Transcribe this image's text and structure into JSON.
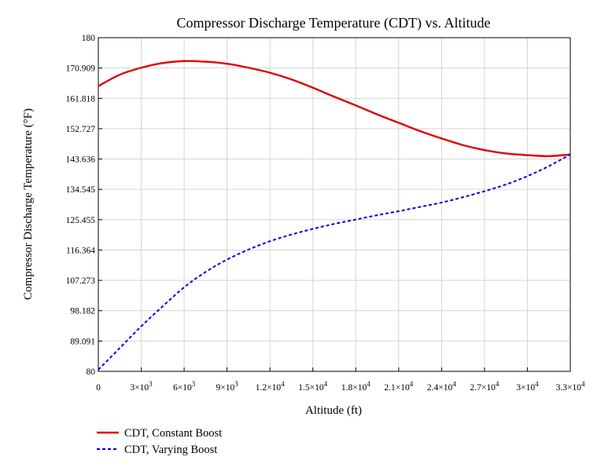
{
  "chart_data": {
    "type": "line",
    "title": "Compressor Discharge Temperature (CDT) vs. Altitude",
    "xlabel": "Altitude (ft)",
    "ylabel": "Compressor Discharge Temperature (°F)",
    "xlim": [
      0,
      33000
    ],
    "ylim": [
      80,
      180
    ],
    "grid": true,
    "legend_position": "bottom-left",
    "x_ticks": [
      {
        "value": 0,
        "mant": "0",
        "exp": ""
      },
      {
        "value": 3000,
        "mant": "3×10",
        "exp": "3"
      },
      {
        "value": 6000,
        "mant": "6×10",
        "exp": "3"
      },
      {
        "value": 9000,
        "mant": "9×10",
        "exp": "3"
      },
      {
        "value": 12000,
        "mant": "1.2×10",
        "exp": "4"
      },
      {
        "value": 15000,
        "mant": "1.5×10",
        "exp": "4"
      },
      {
        "value": 18000,
        "mant": "1.8×10",
        "exp": "4"
      },
      {
        "value": 21000,
        "mant": "2.1×10",
        "exp": "4"
      },
      {
        "value": 24000,
        "mant": "2.4×10",
        "exp": "4"
      },
      {
        "value": 27000,
        "mant": "2.7×10",
        "exp": "4"
      },
      {
        "value": 30000,
        "mant": "3×10",
        "exp": "4"
      },
      {
        "value": 33000,
        "mant": "3.3×10",
        "exp": "4"
      }
    ],
    "y_ticks": [
      {
        "value": 80,
        "label": "80"
      },
      {
        "value": 89.091,
        "label": "89.091"
      },
      {
        "value": 98.182,
        "label": "98.182"
      },
      {
        "value": 107.273,
        "label": "107.273"
      },
      {
        "value": 116.364,
        "label": "116.364"
      },
      {
        "value": 125.455,
        "label": "125.455"
      },
      {
        "value": 134.545,
        "label": "134.545"
      },
      {
        "value": 143.636,
        "label": "143.636"
      },
      {
        "value": 152.727,
        "label": "152.727"
      },
      {
        "value": 161.818,
        "label": "161.818"
      },
      {
        "value": 170.909,
        "label": "170.909"
      },
      {
        "value": 180,
        "label": "180"
      }
    ],
    "series": [
      {
        "name": "CDT, Constant Boost",
        "color": "#e00000",
        "line_style": "solid",
        "x": [
          0,
          1500,
          3000,
          4500,
          6000,
          7500,
          9000,
          10500,
          12000,
          13500,
          15000,
          16500,
          18000,
          19500,
          21000,
          22500,
          24000,
          25500,
          27000,
          28500,
          30000,
          31500,
          33000
        ],
        "y": [
          165.5,
          168.9,
          171.0,
          172.4,
          173.0,
          172.8,
          172.2,
          171.0,
          169.5,
          167.5,
          165.0,
          162.3,
          159.7,
          157.0,
          154.5,
          152.0,
          149.8,
          147.8,
          146.3,
          145.3,
          144.8,
          144.5,
          145.0
        ]
      },
      {
        "name": "CDT, Varying Boost",
        "color": "#0000dd",
        "line_style": "dashed",
        "x": [
          0,
          1500,
          3000,
          4500,
          6000,
          7500,
          9000,
          10500,
          12000,
          13500,
          15000,
          16500,
          18000,
          19500,
          21000,
          22500,
          24000,
          25500,
          27000,
          28500,
          30000,
          31500,
          33000
        ],
        "y": [
          80.5,
          87.0,
          93.5,
          99.5,
          105.2,
          109.8,
          113.5,
          116.5,
          119.0,
          121.0,
          122.7,
          124.2,
          125.5,
          126.8,
          128.0,
          129.3,
          130.6,
          132.2,
          134.0,
          136.0,
          138.5,
          141.5,
          145.0
        ]
      }
    ]
  }
}
